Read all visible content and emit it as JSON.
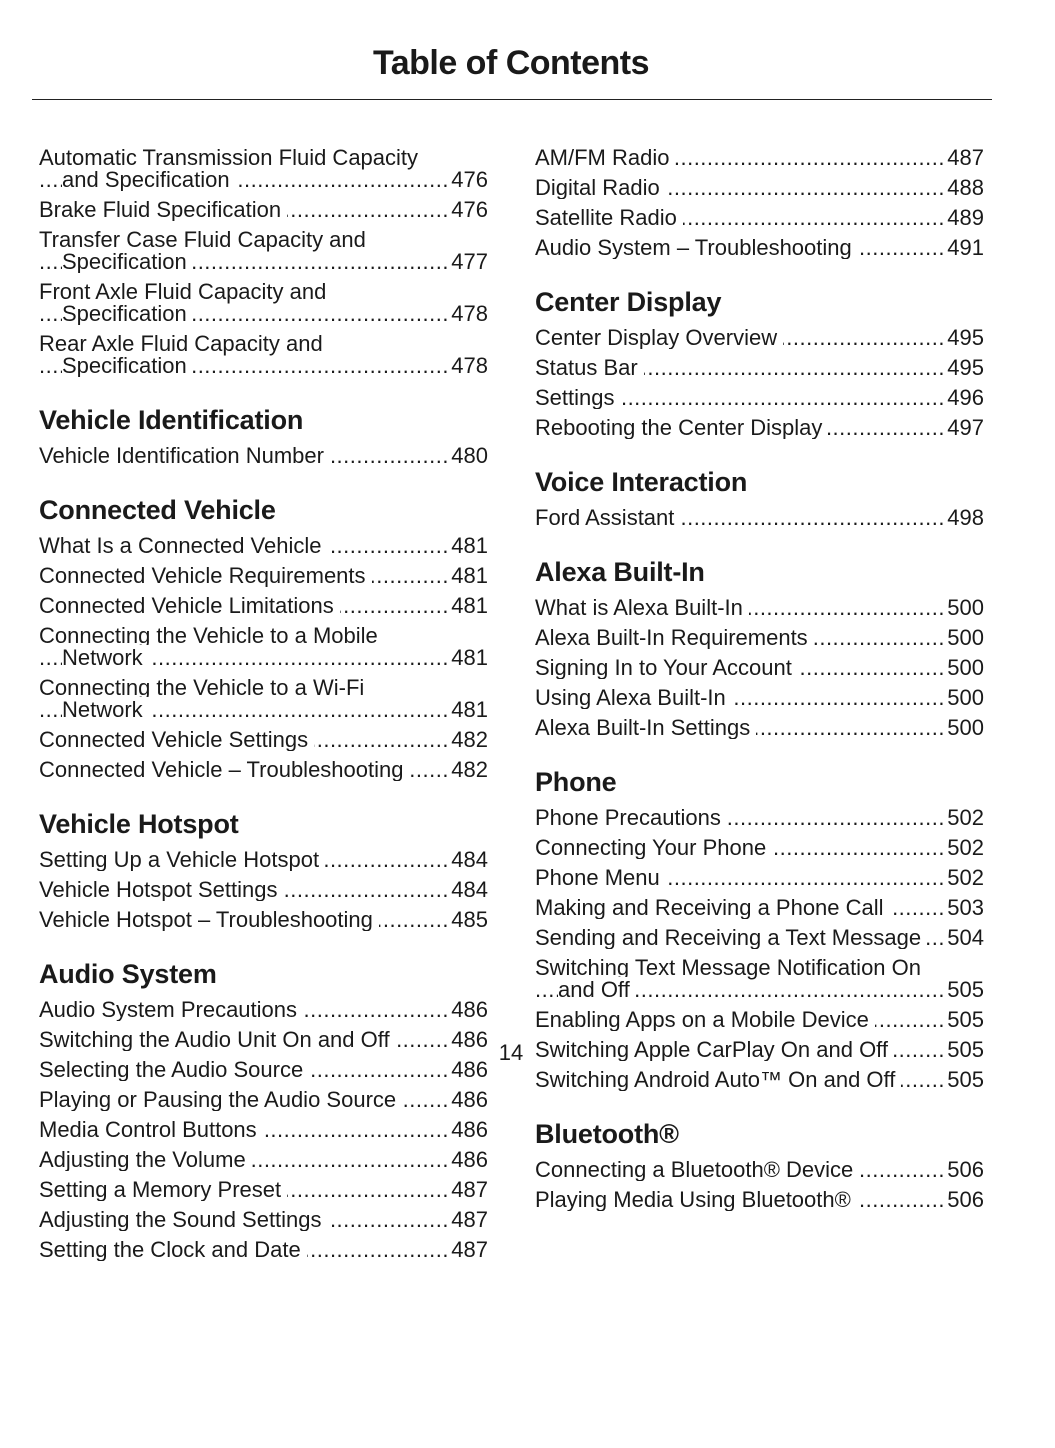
{
  "header": {
    "title": "Table of Contents"
  },
  "columns": [
    [
      {
        "entries": [
          {
            "title": "Automatic Transmission Fluid Capacity and Specification",
            "page": "476"
          },
          {
            "title": "Brake Fluid Specification",
            "page": "476"
          },
          {
            "title": "Transfer Case Fluid Capacity and Specification",
            "page": "477"
          },
          {
            "title": "Front Axle Fluid Capacity and Specification",
            "page": "478"
          },
          {
            "title": "Rear Axle Fluid Capacity and Specification",
            "page": "478"
          }
        ]
      },
      {
        "heading": "Vehicle Identification",
        "entries": [
          {
            "title": "Vehicle Identification Number",
            "page": "480"
          }
        ]
      },
      {
        "heading": "Connected Vehicle",
        "entries": [
          {
            "title": "What Is a Connected Vehicle",
            "page": "481"
          },
          {
            "title": "Connected Vehicle Requirements",
            "page": "481"
          },
          {
            "title": "Connected Vehicle Limitations",
            "page": "481"
          },
          {
            "title": "Connecting the Vehicle to a Mobile Network",
            "page": "481"
          },
          {
            "title": "Connecting the Vehicle to a Wi-Fi Network",
            "page": "481"
          },
          {
            "title": "Connected Vehicle Settings",
            "page": "482"
          },
          {
            "title": "Connected Vehicle – Troubleshooting",
            "page": "482"
          }
        ]
      },
      {
        "heading": "Vehicle Hotspot",
        "entries": [
          {
            "title": "Setting Up a Vehicle Hotspot",
            "page": "484"
          },
          {
            "title": "Vehicle Hotspot Settings",
            "page": "484"
          },
          {
            "title": "Vehicle Hotspot – Troubleshooting",
            "page": "485"
          }
        ]
      },
      {
        "heading": "Audio System",
        "entries": [
          {
            "title": "Audio System Precautions",
            "page": "486"
          },
          {
            "title": "Switching the Audio Unit On and Off",
            "page": "486"
          },
          {
            "title": "Selecting the Audio Source",
            "page": "486"
          },
          {
            "title": "Playing or Pausing the Audio Source",
            "page": "486"
          },
          {
            "title": "Media Control Buttons",
            "page": "486"
          },
          {
            "title": "Adjusting the Volume",
            "page": "486"
          },
          {
            "title": "Setting a Memory Preset",
            "page": "487"
          },
          {
            "title": "Adjusting the Sound Settings",
            "page": "487"
          },
          {
            "title": "Setting the Clock and Date",
            "page": "487"
          }
        ]
      }
    ],
    [
      {
        "entries": [
          {
            "title": "AM/FM Radio",
            "page": "487"
          },
          {
            "title": "Digital Radio",
            "page": "488"
          },
          {
            "title": "Satellite Radio",
            "page": "489"
          },
          {
            "title": "Audio System – Troubleshooting",
            "page": "491"
          }
        ]
      },
      {
        "heading": "Center Display",
        "entries": [
          {
            "title": "Center Display Overview",
            "page": "495"
          },
          {
            "title": "Status Bar",
            "page": "495"
          },
          {
            "title": "Settings",
            "page": "496"
          },
          {
            "title": "Rebooting the Center Display",
            "page": "497"
          }
        ]
      },
      {
        "heading": "Voice Interaction",
        "entries": [
          {
            "title": "Ford Assistant",
            "page": "498"
          }
        ]
      },
      {
        "heading": "Alexa Built-In",
        "entries": [
          {
            "title": "What is Alexa Built-In",
            "page": "500"
          },
          {
            "title": "Alexa Built-In Requirements",
            "page": "500"
          },
          {
            "title": "Signing In to Your Account",
            "page": "500"
          },
          {
            "title": "Using Alexa Built-In",
            "page": "500"
          },
          {
            "title": "Alexa Built-In Settings",
            "page": "500"
          }
        ]
      },
      {
        "heading": "Phone",
        "entries": [
          {
            "title": "Phone Precautions",
            "page": "502"
          },
          {
            "title": "Connecting Your Phone",
            "page": "502"
          },
          {
            "title": "Phone Menu",
            "page": "502"
          },
          {
            "title": "Making and Receiving a Phone Call",
            "page": "503"
          },
          {
            "title": "Sending and Receiving a Text Message",
            "page": "504"
          },
          {
            "title": "Switching Text Message Notification On and Off",
            "page": "505"
          },
          {
            "title": "Enabling Apps on a Mobile Device",
            "page": "505"
          },
          {
            "title": "Switching Apple CarPlay On and Off",
            "page": "505"
          },
          {
            "title": "Switching Android Auto™ On and Off",
            "page": "505"
          }
        ]
      },
      {
        "heading": "Bluetooth®",
        "entries": [
          {
            "title": "Connecting a Bluetooth® Device",
            "page": "506"
          },
          {
            "title": "Playing Media Using Bluetooth®",
            "page": "506"
          }
        ]
      }
    ]
  ],
  "footer": {
    "page_number": "14"
  }
}
